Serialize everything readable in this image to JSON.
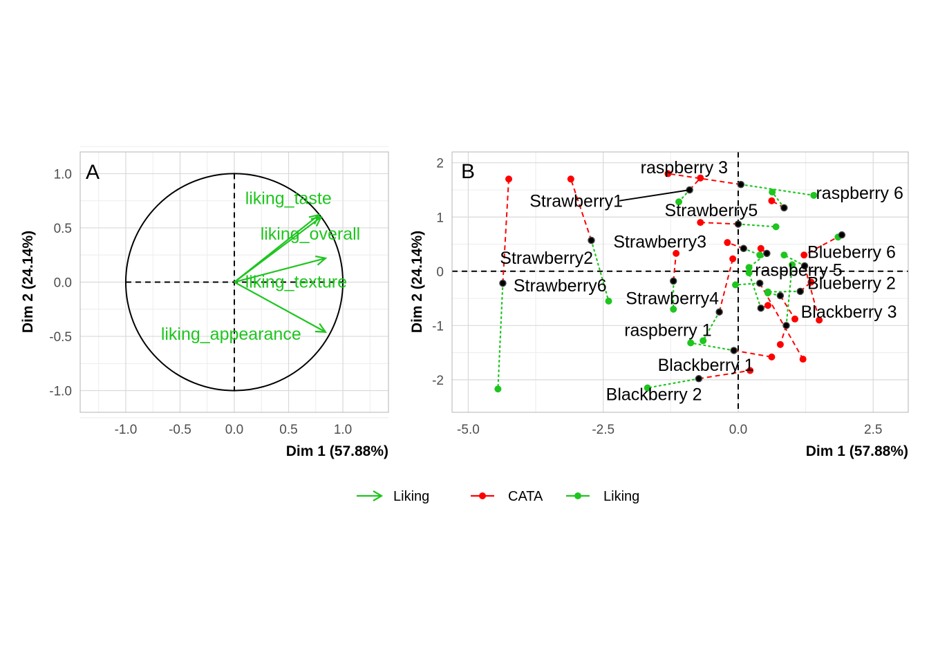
{
  "colors": {
    "cata": "#ff0000",
    "liking": "#1ec51e",
    "consensus": "#000000",
    "grid_major": "#d9d9d9",
    "grid_minor": "#ececec",
    "panel_border": "#b3b3b3"
  },
  "chart_data": [
    {
      "type": "scatter",
      "subtype": "correlation-circle",
      "panel_tag": "A",
      "xlabel": "Dim 1 (57.88%)",
      "ylabel": "Dim 2 (24.14%)",
      "xlim": [
        -1.42,
        1.42
      ],
      "ylim": [
        -1.2,
        1.2
      ],
      "x_ticks": [
        -1.0,
        -0.5,
        0.0,
        0.5,
        1.0
      ],
      "x_tick_labels": [
        "-1.0",
        "-0.5",
        "0.0",
        "0.5",
        "1.0"
      ],
      "y_ticks": [
        -1.0,
        -0.5,
        0.0,
        0.5,
        1.0
      ],
      "y_tick_labels": [
        "-1.0",
        "-0.5",
        "0.0",
        "0.5",
        "1.0"
      ],
      "grid": true,
      "unit_circle": true,
      "arrows": [
        {
          "name": "liking_taste",
          "x": 0.78,
          "y": 0.62
        },
        {
          "name": "liking_overall",
          "x": 0.8,
          "y": 0.6
        },
        {
          "name": "liking_texture",
          "x": 0.84,
          "y": 0.22
        },
        {
          "name": "liking_appearance",
          "x": 0.84,
          "y": -0.46
        }
      ]
    },
    {
      "type": "scatter",
      "subtype": "multiple-factor-partial-points",
      "panel_tag": "B",
      "xlabel": "Dim 1 (57.88%)",
      "ylabel": "Dim 2 (24.14%)",
      "xlim": [
        -5.3,
        3.15
      ],
      "ylim": [
        -2.6,
        2.2
      ],
      "x_ticks": [
        -5.0,
        -2.5,
        0.0,
        2.5
      ],
      "x_tick_labels": [
        "-5.0",
        "-2.5",
        "0.0",
        "2.5"
      ],
      "y_ticks": [
        -2,
        -1,
        0,
        1,
        2
      ],
      "y_tick_labels": [
        "-2",
        "-1",
        "0",
        "1",
        "2"
      ],
      "grid": true,
      "legend_position": "bottom",
      "series_names": [
        "CATA",
        "Liking"
      ],
      "products": [
        {
          "name": "raspberry 3",
          "x": 0.05,
          "y": 1.6,
          "cata": [
            -1.3,
            1.8
          ],
          "liking": [
            1.4,
            1.4
          ],
          "label": [
            -1.0,
            1.92
          ]
        },
        {
          "name": "Strawberry1",
          "x": -0.9,
          "y": 1.5,
          "cata": [
            -0.7,
            1.72
          ],
          "liking": [
            -1.1,
            1.28
          ],
          "label": [
            -3.0,
            1.3
          ]
        },
        {
          "name": "raspberry 6",
          "x": 0.85,
          "y": 1.17,
          "cata": [
            0.62,
            1.3
          ],
          "liking": [
            0.63,
            1.46
          ],
          "label": [
            2.25,
            1.45
          ]
        },
        {
          "name": "Strawberry5",
          "x": 0.0,
          "y": 0.87,
          "cata": [
            -0.7,
            0.9
          ],
          "liking": [
            0.7,
            0.82
          ],
          "label": [
            -0.5,
            1.13
          ]
        },
        {
          "name": "Strawberry3",
          "x": 0.1,
          "y": 0.42,
          "cata": [
            -0.2,
            0.53
          ],
          "liking": [
            0.4,
            0.3
          ],
          "label": [
            -1.45,
            0.55
          ]
        },
        {
          "name": "Blueberry 6",
          "x": 1.92,
          "y": 0.67,
          "cata": [
            1.22,
            0.3
          ],
          "liking": [
            1.85,
            0.63
          ],
          "label": [
            2.1,
            0.36
          ]
        },
        {
          "name": "Strawberry2",
          "x": -2.72,
          "y": 0.57,
          "cata": [
            -3.1,
            1.7
          ],
          "liking": [
            -2.4,
            -0.55
          ],
          "label": [
            -3.55,
            0.25
          ]
        },
        {
          "name": "raspberry 5",
          "x": 0.53,
          "y": 0.33,
          "cata": [
            0.42,
            0.42
          ],
          "liking": [
            0.2,
            0.07
          ],
          "label": [
            1.12,
            0.03
          ]
        },
        {
          "name": "Strawberry6",
          "x": -4.36,
          "y": -0.22,
          "cata": [
            -4.25,
            1.7
          ],
          "liking": [
            -4.45,
            -2.17
          ],
          "label": [
            -3.3,
            -0.26
          ]
        },
        {
          "name": "Blueberry 2",
          "x": 1.15,
          "y": -0.37,
          "cata": [
            1.35,
            -0.2
          ],
          "liking": [
            0.55,
            -0.38
          ],
          "label": [
            2.1,
            -0.21
          ]
        },
        {
          "name": "Strawberry4",
          "x": -1.2,
          "y": -0.18,
          "cata": [
            -1.15,
            0.33
          ],
          "liking": [
            -1.2,
            -0.7
          ],
          "label": [
            -1.22,
            -0.49
          ]
        },
        {
          "name": "Blackberry 3",
          "x": 1.23,
          "y": 0.1,
          "cata": [
            1.5,
            -0.9
          ],
          "liking": [
            0.85,
            0.3
          ],
          "label": [
            2.05,
            -0.74
          ]
        },
        {
          "name": "raspberry 1",
          "x": -0.35,
          "y": -0.75,
          "cata": [
            -0.1,
            0.23
          ],
          "liking": [
            -0.65,
            -1.28
          ],
          "label": [
            -1.3,
            -1.08
          ]
        },
        {
          "name": "Blackberry 1",
          "x": -0.08,
          "y": -1.46,
          "cata": [
            0.62,
            -1.58
          ],
          "liking": [
            -0.88,
            -1.32
          ],
          "label": [
            -0.6,
            -1.72
          ]
        },
        {
          "name": "Blackberry 2",
          "x": -0.73,
          "y": -1.98,
          "cata": [
            0.22,
            -1.83
          ],
          "liking": [
            -1.68,
            -2.15
          ],
          "label": [
            -1.56,
            -2.26
          ]
        },
        {
          "name": "",
          "x": 0.42,
          "y": -0.68,
          "cata": [
            0.55,
            -0.63
          ],
          "liking": [
            0.2,
            -0.03
          ],
          "label": null
        },
        {
          "name": "",
          "x": 0.78,
          "y": -0.45,
          "cata": [
            1.05,
            -0.88
          ],
          "liking": [
            0.55,
            -0.4
          ],
          "label": null
        },
        {
          "name": "",
          "x": 0.89,
          "y": -1.0,
          "cata": [
            0.78,
            -1.35
          ],
          "liking": [
            1.0,
            0.12
          ],
          "label": null
        },
        {
          "name": "",
          "x": 0.4,
          "y": -0.22,
          "cata": [
            1.2,
            -1.62
          ],
          "liking": [
            -0.05,
            -0.25
          ],
          "label": null
        }
      ]
    }
  ],
  "legend": {
    "arrow_label": "Liking",
    "items": [
      {
        "label": "CATA",
        "color_key": "cata"
      },
      {
        "label": "Liking",
        "color_key": "liking"
      }
    ]
  }
}
